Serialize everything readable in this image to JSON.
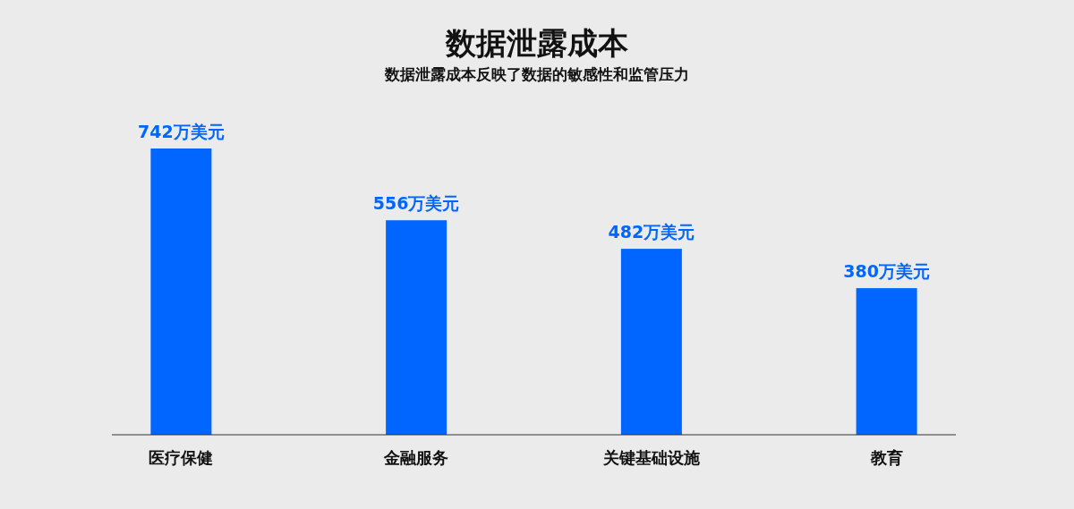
{
  "chart_data": {
    "type": "bar",
    "title": "数据泄露成本",
    "subtitle": "数据泄露成本反映了数据的敏感性和监管压力",
    "categories": [
      "医疗保健",
      "金融服务",
      "关键基础设施",
      "教育"
    ],
    "values": [
      742,
      556,
      482,
      380
    ],
    "value_labels": [
      "742万美元",
      "556万美元",
      "482万美元",
      "380万美元"
    ],
    "color": "#0066ff"
  }
}
